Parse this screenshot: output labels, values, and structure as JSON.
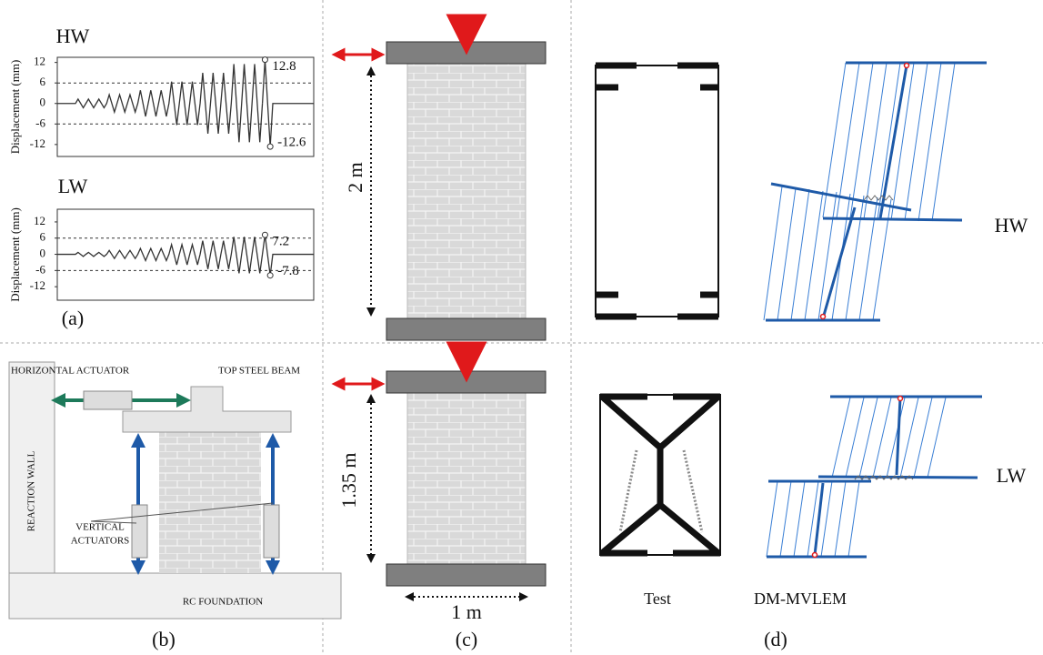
{
  "panel_a": {
    "label": "(a)",
    "charts": [
      {
        "title": "HW",
        "y_label": "Displacement (mm)",
        "ylim": [
          -15.5,
          13.5
        ],
        "yticks": [
          -12,
          -6,
          0,
          6,
          12
        ],
        "grid": [
          -6,
          6
        ],
        "max": 12.8,
        "min": -12.6
      },
      {
        "title": "LW",
        "y_label": "Displacement (mm)",
        "ylim": [
          -17,
          16.7
        ],
        "yticks": [
          -12,
          -6,
          0,
          6,
          12
        ],
        "grid": [
          -6,
          6
        ],
        "max": 7.2,
        "min": -7.8
      }
    ]
  },
  "panel_b": {
    "label": "(b)",
    "horizontal_actuator": "HORIZONTAL ACTUATOR",
    "top_beam": "TOP STEEL BEAM",
    "reaction_wall": "REACTION WALL",
    "vertical_actuators": [
      "VERTICAL",
      "ACTUATORS"
    ],
    "foundation": "RC FOUNDATION"
  },
  "panel_c": {
    "label": "(c)",
    "hw_height": "2 m",
    "lw_height": "1.35 m",
    "width": "1 m"
  },
  "panel_d": {
    "label": "(d)",
    "columns": [
      "Test",
      "DM-MVLEM"
    ],
    "rows": [
      "HW",
      "LW"
    ]
  }
}
